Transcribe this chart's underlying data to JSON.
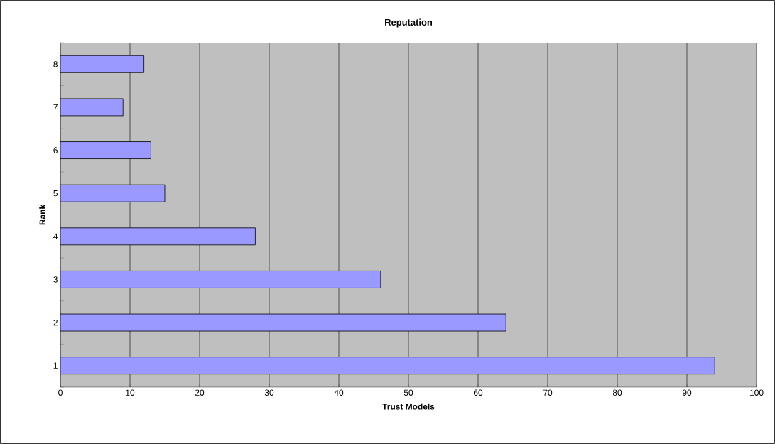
{
  "chart_data": {
    "type": "bar",
    "orientation": "horizontal",
    "title": "Reputation",
    "xlabel": "Trust Models",
    "ylabel": "Rank",
    "categories": [
      "8",
      "7",
      "6",
      "5",
      "4",
      "3",
      "2",
      "1"
    ],
    "values": [
      12,
      9,
      13,
      15,
      28,
      46,
      64,
      94
    ],
    "color": "#9999ff",
    "xlim": [
      0,
      100
    ],
    "xticks": [
      0,
      10,
      20,
      30,
      40,
      50,
      60,
      70,
      80,
      90,
      100
    ],
    "grid": "x"
  }
}
